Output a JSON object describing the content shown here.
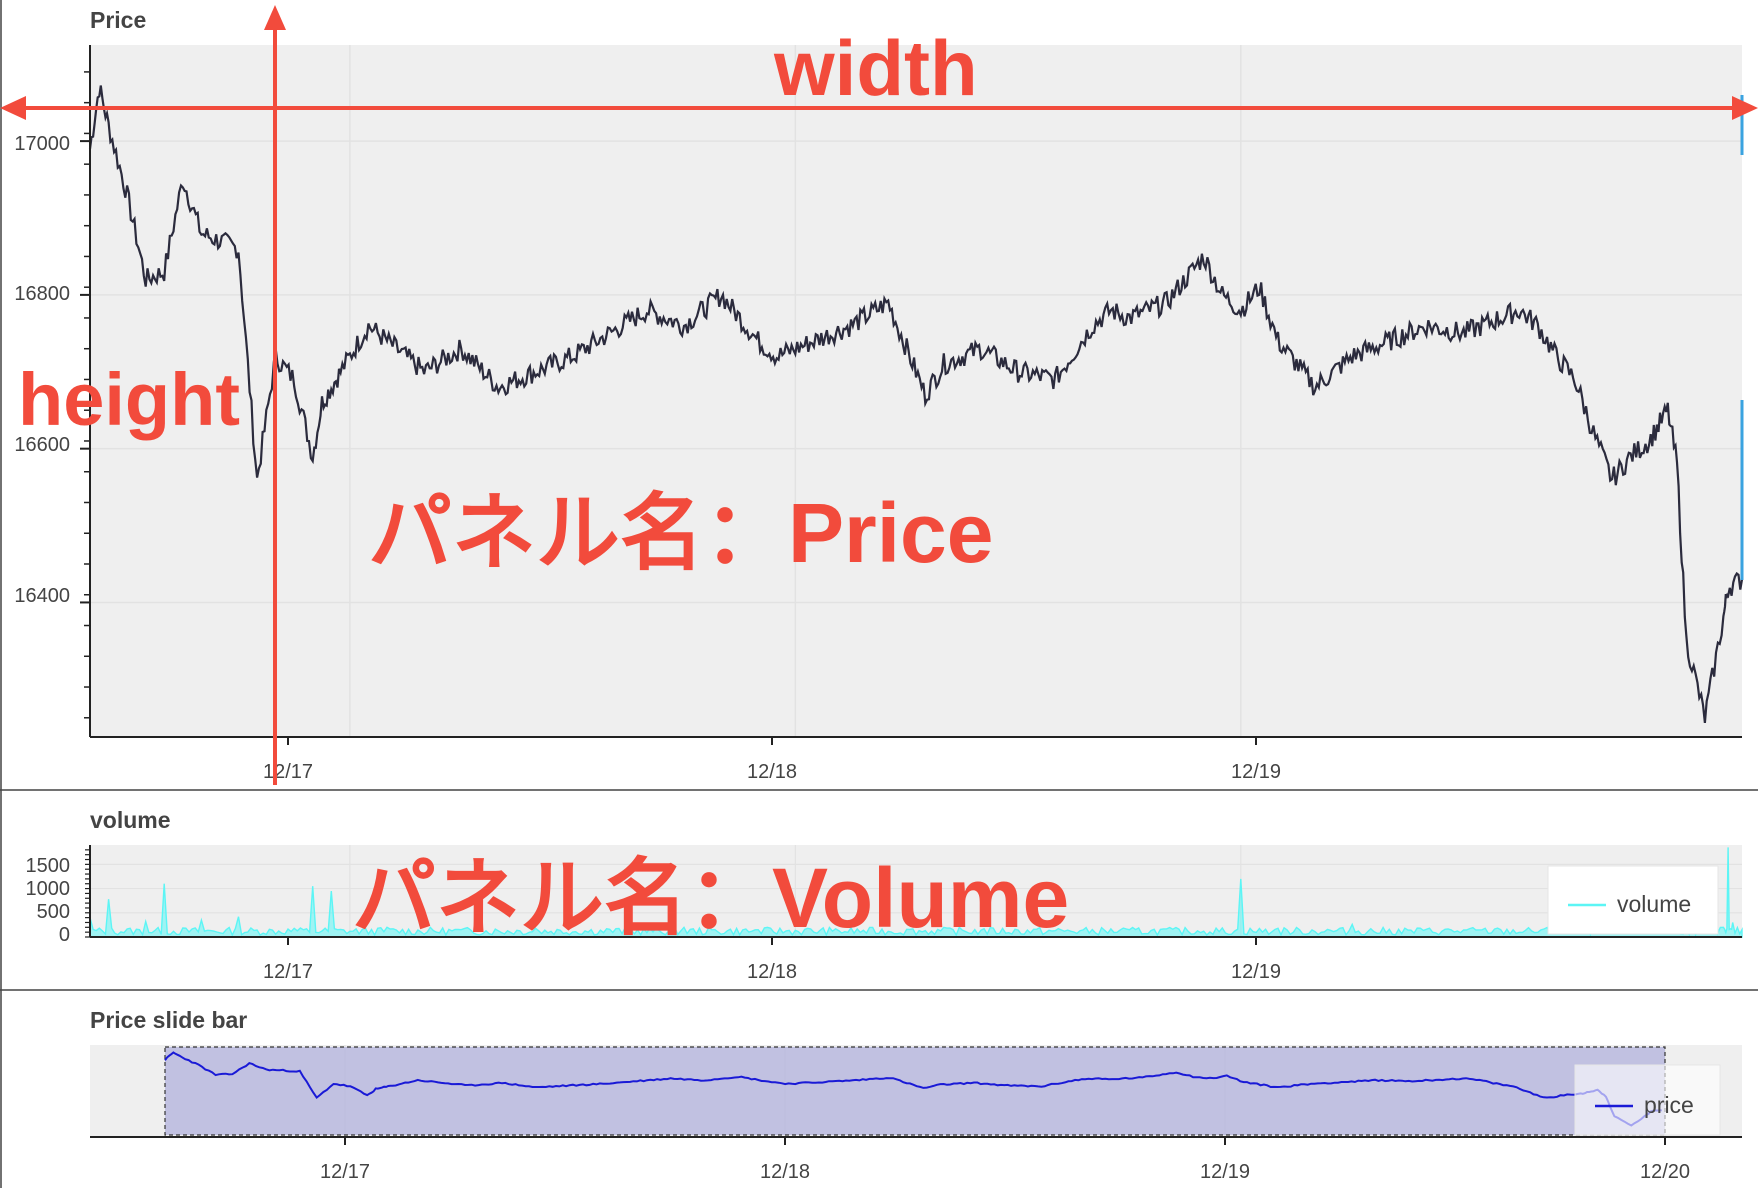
{
  "colors": {
    "plot_bg": "#efefef",
    "grid": "#e0e0e0",
    "price_line": "#2b2b3d",
    "volume_line": "#5cf5f5",
    "slider_line": "#1a1ad6",
    "slider_fill": "#b4b4dc",
    "annotation": "#f24b3c",
    "side_bar": "#3aa3e0"
  },
  "annotations": {
    "width": "width",
    "height": "height",
    "price_panel": "パネル名：Price",
    "volume_panel": "パネル名：Volume"
  },
  "chart_data": [
    {
      "type": "line",
      "title": "Price",
      "xlabel": "",
      "ylabel": "",
      "x_range": [
        "12/16 10:00",
        "12/20 03:00"
      ],
      "ylim": [
        16225,
        17125
      ],
      "yticks": [
        "17000",
        "16800",
        "16600",
        "16400"
      ],
      "xticks": [
        "12/17",
        "12/18",
        "12/19"
      ],
      "grid": true,
      "series": [
        {
          "x": [
            "12/16 10:00",
            "12/16 10:30",
            "12/16 11:00",
            "12/16 12:00",
            "12/16 13:00",
            "12/16 14:00",
            "12/16 15:00",
            "12/16 16:00",
            "12/16 18:00",
            "12/16 19:00",
            "12/16 20:00",
            "12/16 21:00",
            "12/16 22:00",
            "12/16 22:30",
            "12/16 23:00",
            "12/16 23:30",
            "12/17 01:00",
            "12/17 03:00",
            "12/17 04:00",
            "12/17 06:00",
            "12/17 08:00",
            "12/17 10:00",
            "12/17 12:00",
            "12/17 14:00",
            "12/17 16:00",
            "12/17 18:00",
            "12/17 20:00",
            "12/17 22:00",
            "12/17 23:00",
            "12/18 01:00",
            "12/18 03:00",
            "12/18 05:00",
            "12/18 07:00",
            "12/18 08:00",
            "12/18 10:00",
            "12/18 12:00",
            "12/18 14:00",
            "12/18 16:00",
            "12/18 17:00",
            "12/18 18:00",
            "12/18 20:00",
            "12/18 22:00",
            "12/18 23:00",
            "12/19 00:00",
            "12/19 01:00",
            "12/19 02:00",
            "12/19 04:00",
            "12/19 05:00",
            "12/19 06:00",
            "12/19 08:00",
            "12/19 10:00",
            "12/19 12:00",
            "12/19 14:00",
            "12/19 15:00",
            "12/19 16:00",
            "12/19 17:00",
            "12/19 18:00",
            "12/19 19:00",
            "12/19 20:00",
            "12/19 21:00",
            "12/19 22:00",
            "12/19 22:30",
            "12/19 23:00",
            "12/19 23:30",
            "12/20 00:00",
            "12/20 01:00",
            "12/20 02:00",
            "12/20 02:15",
            "12/20 03:00"
          ],
          "y": [
            16990,
            17070,
            17020,
            16930,
            16820,
            16830,
            16950,
            16880,
            16860,
            16560,
            16720,
            16690,
            16590,
            16660,
            16680,
            16700,
            16760,
            16720,
            16700,
            16730,
            16680,
            16700,
            16720,
            16750,
            16780,
            16760,
            16800,
            16740,
            16720,
            16740,
            16760,
            16790,
            16670,
            16710,
            16730,
            16700,
            16690,
            16760,
            16780,
            16770,
            16790,
            16850,
            16800,
            16780,
            16810,
            16740,
            16680,
            16700,
            16720,
            16740,
            16760,
            16750,
            16770,
            16780,
            16760,
            16720,
            16690,
            16620,
            16560,
            16590,
            16610,
            16630,
            16650,
            16580,
            16350,
            16250,
            16380,
            16420,
            16430
          ]
        }
      ]
    },
    {
      "type": "area",
      "title": "volume",
      "x_range": [
        "12/16 10:00",
        "12/20 03:00"
      ],
      "ylim": [
        0,
        1900
      ],
      "yticks": [
        "1500",
        "1000",
        "500",
        "0"
      ],
      "xticks": [
        "12/17",
        "12/18",
        "12/19"
      ],
      "grid": true,
      "legend": "top-right",
      "series": [
        {
          "name": "volume",
          "x": [
            "12/16 10:00",
            "12/16 11:00",
            "12/16 13:00",
            "12/16 14:00",
            "12/16 16:00",
            "12/16 18:00",
            "12/16 21:00",
            "12/16 22:00",
            "12/16 23:00",
            "12/17 02:00",
            "12/17 06:00",
            "12/17 10:00",
            "12/17 14:00",
            "12/17 18:00",
            "12/17 22:00",
            "12/18 02:00",
            "12/18 06:00",
            "12/18 10:00",
            "12/18 14:00",
            "12/18 18:00",
            "12/18 22:00",
            "12/19 00:00",
            "12/19 02:00",
            "12/19 06:00",
            "12/19 10:00",
            "12/19 14:00",
            "12/19 18:00",
            "12/19 22:00",
            "12/20 00:00",
            "12/20 02:00",
            "12/20 02:15",
            "12/20 02:30",
            "12/20 03:00"
          ],
          "values": [
            400,
            780,
            320,
            1100,
            350,
            420,
            180,
            1050,
            950,
            200,
            150,
            180,
            160,
            200,
            150,
            120,
            160,
            140,
            130,
            150,
            120,
            1200,
            180,
            260,
            160,
            150,
            180,
            140,
            120,
            200,
            1850,
            300,
            150
          ]
        }
      ]
    },
    {
      "type": "line",
      "title": "Price slide bar",
      "x_range": [
        "12/16 10:00",
        "12/20 03:00"
      ],
      "xticks": [
        "12/17",
        "12/18",
        "12/19",
        "12/20"
      ],
      "selection": [
        "12/16 10:00",
        "12/20 03:00"
      ],
      "legend": "bottom-right",
      "series": [
        {
          "name": "price"
        }
      ]
    }
  ]
}
